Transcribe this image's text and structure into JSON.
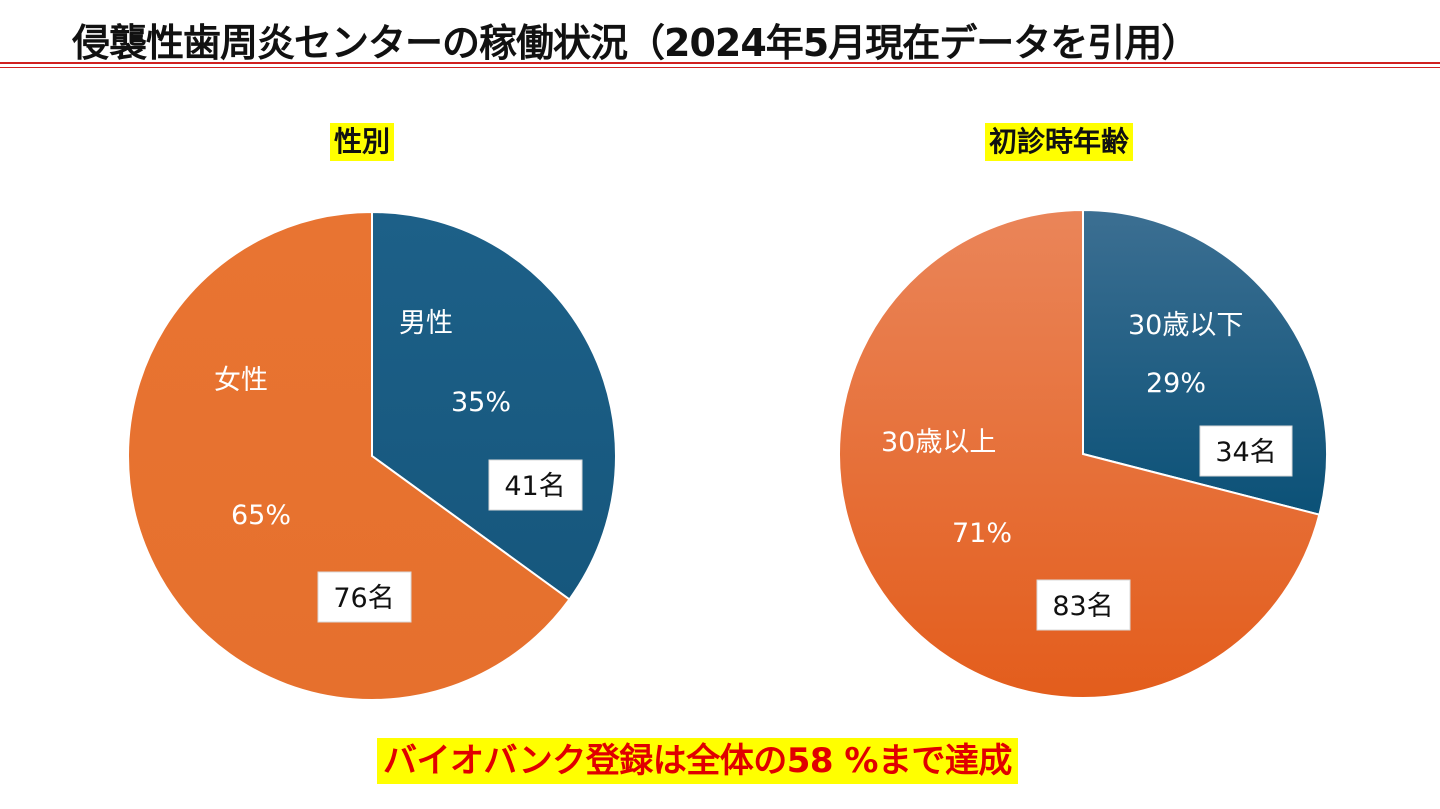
{
  "slide": {
    "title": "侵襲性歯周炎センターの稼働状況（2024年5月現在データを引用）",
    "footer_note": "バイオバンク登録は全体の58 %まで達成"
  },
  "colors": {
    "blue": "#1b5c82",
    "orange": "#e8702d",
    "title_rule": "#d02020",
    "highlight": "#ffff00",
    "footer_text": "#e00000"
  },
  "chart_data": [
    {
      "type": "pie",
      "title": "性別",
      "slices": [
        {
          "name": "男性",
          "percent": 35,
          "percent_label": "35%",
          "count_label": "41名",
          "color": "#1b5c82"
        },
        {
          "name": "女性",
          "percent": 65,
          "percent_label": "65%",
          "count_label": "76名",
          "color": "#e8702d"
        }
      ]
    },
    {
      "type": "pie",
      "title": "初診時年齢",
      "slices": [
        {
          "name": "30歳以下",
          "percent": 29,
          "percent_label": "29%",
          "count_label": "34名",
          "color": "#1b5c82"
        },
        {
          "name": "30歳以上",
          "percent": 71,
          "percent_label": "71%",
          "count_label": "83名",
          "color": "#e8702d"
        }
      ]
    }
  ]
}
